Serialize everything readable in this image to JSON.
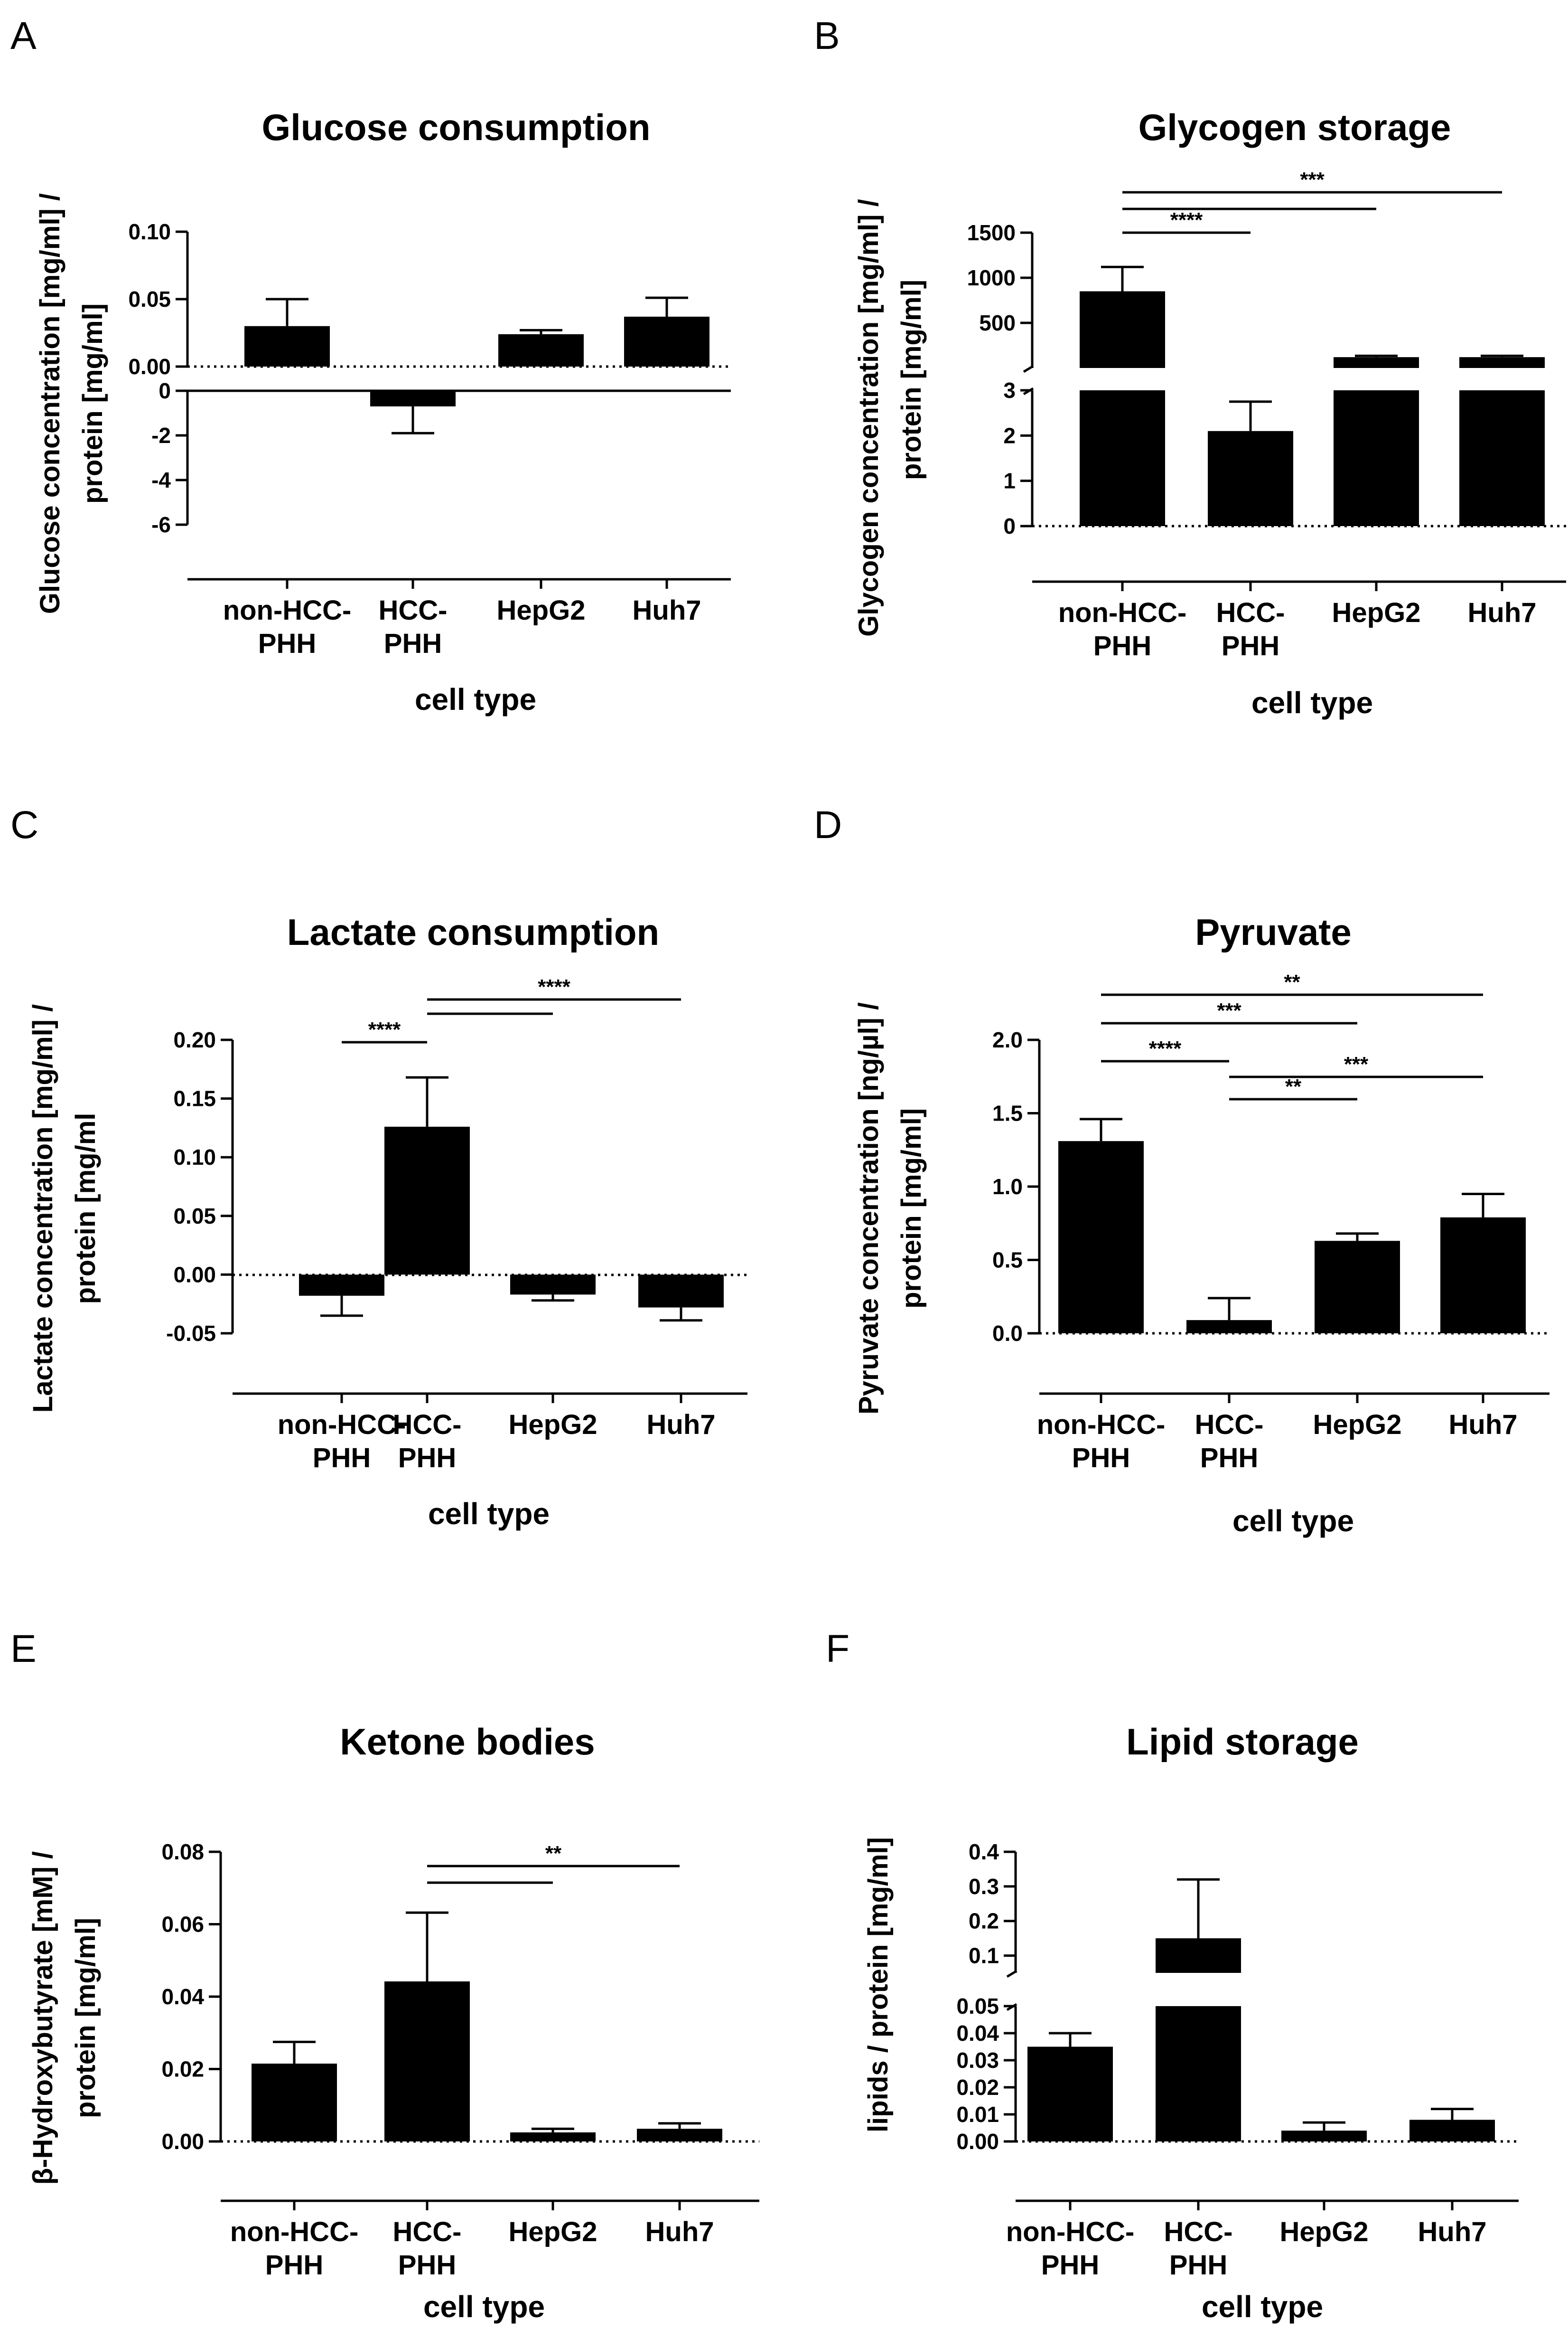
{
  "figure": {
    "panels": [
      "A",
      "B",
      "C",
      "D",
      "E",
      "F"
    ]
  },
  "chart_data": [
    {
      "panel": "A",
      "type": "bar",
      "title": "Glucose consumption",
      "xlabel": "cell type",
      "ylabel": [
        "Glucose concentration [mg/ml] /",
        "protein [mg/ml]"
      ],
      "categories": [
        [
          "non-HCC-",
          "PHH"
        ],
        [
          "HCC-",
          "PHH"
        ],
        [
          "HepG2"
        ],
        [
          "Huh7"
        ]
      ],
      "values": [
        0.03,
        -0.7,
        0.024,
        0.037
      ],
      "errors": [
        0.02,
        1.2,
        0.003,
        0.014
      ],
      "axis_segments": [
        {
          "range": [
            0,
            0.1
          ],
          "ticks": [
            0,
            0.05,
            0.1
          ],
          "tick_labels": [
            "0.00",
            "0.05",
            "0.10"
          ]
        },
        {
          "range": [
            -6,
            0
          ],
          "ticks": [
            0,
            -2,
            -4,
            -6
          ],
          "tick_labels": [
            "0",
            "-2",
            "-4",
            "-6"
          ]
        }
      ],
      "significance": []
    },
    {
      "panel": "B",
      "type": "bar",
      "title": "Glycogen storage",
      "xlabel": "cell type",
      "ylabel": [
        "Glycogen concentration [mg/ml] /",
        "protein [mg/ml]"
      ],
      "categories": [
        [
          "non-HCC-",
          "PHH"
        ],
        [
          "HCC-",
          "PHH"
        ],
        [
          "HepG2"
        ],
        [
          "Huh7"
        ]
      ],
      "values": [
        850,
        2.1,
        120,
        120
      ],
      "errors": [
        270,
        0.65,
        15,
        15
      ],
      "axis_segments": [
        {
          "range": [
            0,
            3
          ],
          "ticks": [
            0,
            1,
            2,
            3
          ],
          "tick_labels": [
            "0",
            "1",
            "2",
            "3"
          ]
        },
        {
          "range": [
            0,
            1500
          ],
          "ticks": [
            500,
            1000,
            1500
          ],
          "tick_labels": [
            "500",
            "1000",
            "1500"
          ]
        }
      ],
      "significance": [
        {
          "from": 0,
          "to": 1,
          "label": "****"
        },
        {
          "from": 0,
          "to": 2,
          "label": ""
        },
        {
          "from": 0,
          "to": 3,
          "label": "***"
        }
      ]
    },
    {
      "panel": "C",
      "type": "bar",
      "title": "Lactate consumption",
      "xlabel": "cell type",
      "ylabel": [
        "Lactate concentration [mg/ml] /",
        "protein [mg/ml"
      ],
      "categories": [
        [
          "non-HCC-",
          "PHH"
        ],
        [
          "HCC-",
          "PHH"
        ],
        [
          "HepG2"
        ],
        [
          "Huh7"
        ]
      ],
      "values": [
        -0.018,
        0.126,
        -0.017,
        -0.028
      ],
      "errors": [
        0.017,
        0.042,
        0.005,
        0.011
      ],
      "ylim": [
        -0.05,
        0.2
      ],
      "ticks": [
        -0.05,
        0,
        0.05,
        0.1,
        0.15,
        0.2
      ],
      "tick_labels": [
        "-0.05",
        "0.00",
        "0.05",
        "0.10",
        "0.15",
        "0.20"
      ],
      "significance": [
        {
          "from": 0,
          "to": 1,
          "label": "****"
        },
        {
          "from": 1,
          "to": 2,
          "label": ""
        },
        {
          "from": 1,
          "to": 3,
          "label": "****"
        }
      ]
    },
    {
      "panel": "D",
      "type": "bar",
      "title": "Pyruvate",
      "xlabel": "cell type",
      "ylabel": [
        "Pyruvate concentration [ng/µl] /",
        "protein [mg/ml]"
      ],
      "categories": [
        [
          "non-HCC-",
          "PHH"
        ],
        [
          "HCC-",
          "PHH"
        ],
        [
          "HepG2"
        ],
        [
          "Huh7"
        ]
      ],
      "values": [
        1.31,
        0.09,
        0.63,
        0.79
      ],
      "errors": [
        0.15,
        0.15,
        0.05,
        0.16
      ],
      "ylim": [
        0,
        2.0
      ],
      "ticks": [
        0,
        0.5,
        1.0,
        1.5,
        2.0
      ],
      "tick_labels": [
        "0.0",
        "0.5",
        "1.0",
        "1.5",
        "2.0"
      ],
      "significance": [
        {
          "from": 0,
          "to": 3,
          "label": "**"
        },
        {
          "from": 0,
          "to": 2,
          "label": "***"
        },
        {
          "from": 0,
          "to": 1,
          "label": "****"
        },
        {
          "from": 1,
          "to": 3,
          "label": "***"
        },
        {
          "from": 1,
          "to": 2,
          "label": "**"
        }
      ]
    },
    {
      "panel": "E",
      "type": "bar",
      "title": "Ketone bodies",
      "xlabel": "cell type",
      "ylabel": [
        "β-Hydroxybutyrate [mM] /",
        "protein [mg/ml]"
      ],
      "categories": [
        [
          "non-HCC-",
          "PHH"
        ],
        [
          "HCC-",
          "PHH"
        ],
        [
          "HepG2"
        ],
        [
          "Huh7"
        ]
      ],
      "values": [
        0.0215,
        0.0442,
        0.0025,
        0.0035
      ],
      "errors": [
        0.006,
        0.019,
        0.001,
        0.0015
      ],
      "ylim": [
        0,
        0.08
      ],
      "ticks": [
        0,
        0.02,
        0.04,
        0.06,
        0.08
      ],
      "tick_labels": [
        "0.00",
        "0.02",
        "0.04",
        "0.06",
        "0.08"
      ],
      "significance": [
        {
          "from": 1,
          "to": 2,
          "label": ""
        },
        {
          "from": 1,
          "to": 3,
          "label": "**"
        }
      ]
    },
    {
      "panel": "F",
      "type": "bar",
      "title": "Lipid storage",
      "xlabel": "cell type",
      "ylabel": [
        "lipids / protein [mg/ml]"
      ],
      "categories": [
        [
          "non-HCC-",
          "PHH"
        ],
        [
          "HCC-",
          "PHH"
        ],
        [
          "HepG2"
        ],
        [
          "Huh7"
        ]
      ],
      "values": [
        0.035,
        0.15,
        0.004,
        0.008
      ],
      "errors": [
        0.005,
        0.17,
        0.003,
        0.004
      ],
      "axis_segments": [
        {
          "range": [
            0,
            0.05
          ],
          "ticks": [
            0,
            0.01,
            0.02,
            0.03,
            0.04,
            0.05
          ],
          "tick_labels": [
            "0.00",
            "0.01",
            "0.02",
            "0.03",
            "0.04",
            "0.05"
          ]
        },
        {
          "range": [
            0.05,
            0.4
          ],
          "ticks": [
            0.1,
            0.2,
            0.3,
            0.4
          ],
          "tick_labels": [
            "0.1",
            "0.2",
            "0.3",
            "0.4"
          ]
        }
      ],
      "significance": []
    }
  ]
}
